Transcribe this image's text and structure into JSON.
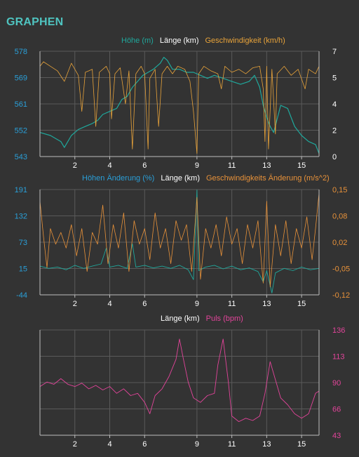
{
  "app": {
    "title": "GRAPHEN"
  },
  "colors": {
    "background": "#333333",
    "axis": "#bdbdbd",
    "grid": "#5a5a5a",
    "teal": "#1fa89c",
    "orange": "#e8a33a",
    "orange2": "#e8923a",
    "pink": "#e2449a",
    "white": "#ffffff",
    "blueLabel": "#2a9fd8",
    "title": "#4fc4c0"
  },
  "chart_data": [
    {
      "type": "line",
      "legend": [
        "Höhe (m)",
        "Länge (km)",
        "Geschwindigkeit (km/h)"
      ],
      "xticks": [
        "2",
        "4",
        "6",
        "9",
        "11",
        "13",
        "15"
      ],
      "xlim": [
        0,
        16
      ],
      "y_left": {
        "ticks": [
          "578",
          "569",
          "561",
          "552",
          "543"
        ],
        "ylim": [
          543,
          578
        ]
      },
      "y_right": {
        "ticks": [
          "7",
          "5",
          "4",
          "2",
          "0"
        ],
        "ylim": [
          0,
          7
        ]
      },
      "series": [
        {
          "name": "Höhe (m)",
          "axis": "left",
          "color": "#1fa89c",
          "width": 1.2,
          "points": [
            [
              0,
              551
            ],
            [
              0.6,
              550
            ],
            [
              1.2,
              548
            ],
            [
              1.4,
              546
            ],
            [
              1.8,
              550
            ],
            [
              2.2,
              552
            ],
            [
              2.6,
              553
            ],
            [
              3.0,
              554
            ],
            [
              3.3,
              555
            ],
            [
              3.6,
              557
            ],
            [
              4.0,
              558
            ],
            [
              4.4,
              559
            ],
            [
              4.7,
              562
            ],
            [
              5.0,
              563
            ],
            [
              5.3,
              566
            ],
            [
              5.6,
              568
            ],
            [
              5.9,
              570
            ],
            [
              6.2,
              571
            ],
            [
              6.5,
              572
            ],
            [
              6.9,
              574
            ],
            [
              7.1,
              576
            ],
            [
              7.3,
              575
            ],
            [
              7.6,
              572
            ],
            [
              8.0,
              572
            ],
            [
              8.4,
              571
            ],
            [
              8.8,
              571
            ],
            [
              9.2,
              570
            ],
            [
              9.6,
              569
            ],
            [
              10.0,
              570
            ],
            [
              10.5,
              569
            ],
            [
              11.0,
              568
            ],
            [
              11.5,
              567
            ],
            [
              12.0,
              568
            ],
            [
              12.3,
              570
            ],
            [
              12.6,
              566
            ],
            [
              12.8,
              560
            ],
            [
              13.0,
              556
            ],
            [
              13.2,
              553
            ],
            [
              13.4,
              551
            ],
            [
              13.8,
              560
            ],
            [
              14.2,
              559
            ],
            [
              14.6,
              553
            ],
            [
              15.0,
              550
            ],
            [
              15.4,
              548
            ],
            [
              15.8,
              547
            ],
            [
              16.0,
              544
            ]
          ]
        },
        {
          "name": "Geschwindigkeit (km/h)",
          "axis": "right",
          "color": "#e8a33a",
          "width": 0.8,
          "points": [
            [
              0,
              6
            ],
            [
              0.2,
              6.3
            ],
            [
              0.6,
              6
            ],
            [
              1.0,
              5.7
            ],
            [
              1.4,
              5
            ],
            [
              1.8,
              6.2
            ],
            [
              2.2,
              5.4
            ],
            [
              2.4,
              3
            ],
            [
              2.6,
              5.6
            ],
            [
              3.0,
              5.8
            ],
            [
              3.2,
              2
            ],
            [
              3.4,
              5.6
            ],
            [
              3.8,
              6
            ],
            [
              4.0,
              5.5
            ],
            [
              4.1,
              2.5
            ],
            [
              4.3,
              5.5
            ],
            [
              4.6,
              5.9
            ],
            [
              4.9,
              3.5
            ],
            [
              5.1,
              5.7
            ],
            [
              5.3,
              0.5
            ],
            [
              5.5,
              5.5
            ],
            [
              5.8,
              6
            ],
            [
              6.0,
              5.5
            ],
            [
              6.2,
              0.5
            ],
            [
              6.3,
              5.2
            ],
            [
              6.6,
              5.8
            ],
            [
              6.8,
              2
            ],
            [
              7.0,
              5.5
            ],
            [
              7.3,
              6
            ],
            [
              7.6,
              5.5
            ],
            [
              7.9,
              6
            ],
            [
              8.3,
              5.8
            ],
            [
              8.6,
              5
            ],
            [
              8.8,
              3
            ],
            [
              9.0,
              0.2
            ],
            [
              9.1,
              5.5
            ],
            [
              9.4,
              6
            ],
            [
              9.8,
              5.7
            ],
            [
              10.2,
              5.5
            ],
            [
              10.4,
              4.5
            ],
            [
              10.6,
              6
            ],
            [
              11.0,
              5.6
            ],
            [
              11.4,
              5.8
            ],
            [
              11.8,
              5.5
            ],
            [
              12.2,
              5.9
            ],
            [
              12.6,
              6
            ],
            [
              12.8,
              4.5
            ],
            [
              12.9,
              1
            ],
            [
              13.0,
              6
            ],
            [
              13.1,
              0.5
            ],
            [
              13.3,
              5.8
            ],
            [
              13.5,
              1.5
            ],
            [
              13.6,
              5.5
            ],
            [
              14.0,
              6
            ],
            [
              14.4,
              5.4
            ],
            [
              14.8,
              5.8
            ],
            [
              15.2,
              4.5
            ],
            [
              15.4,
              5.8
            ],
            [
              15.8,
              5.5
            ],
            [
              16.0,
              6
            ]
          ]
        }
      ]
    },
    {
      "type": "line",
      "legend": [
        "Höhen Änderung (%)",
        "Länge (km)",
        "Geschwindigkeits Änderung (m/s^2)"
      ],
      "xticks": [
        "2",
        "4",
        "6",
        "9",
        "11",
        "13",
        "15"
      ],
      "xlim": [
        0,
        16
      ],
      "y_left": {
        "ticks": [
          "191",
          "132",
          "73",
          "15",
          "-44"
        ],
        "ylim": [
          -44,
          191
        ]
      },
      "y_right": {
        "ticks": [
          "0,15",
          "0,08",
          "0,02",
          "-0,05",
          "-0,12"
        ],
        "ylim": [
          -0.12,
          0.15
        ]
      },
      "series": [
        {
          "name": "Höhen Änderung (%)",
          "axis": "left",
          "color": "#1fa89c",
          "width": 0.9,
          "points": [
            [
              0,
              20
            ],
            [
              0.5,
              15
            ],
            [
              1.0,
              18
            ],
            [
              1.5,
              12
            ],
            [
              2.0,
              22
            ],
            [
              2.5,
              15
            ],
            [
              3.0,
              20
            ],
            [
              3.5,
              25
            ],
            [
              3.8,
              60
            ],
            [
              4.0,
              18
            ],
            [
              4.5,
              22
            ],
            [
              5.0,
              15
            ],
            [
              5.3,
              70
            ],
            [
              5.5,
              18
            ],
            [
              6.0,
              22
            ],
            [
              6.5,
              16
            ],
            [
              7.0,
              20
            ],
            [
              7.5,
              15
            ],
            [
              8.0,
              22
            ],
            [
              8.5,
              12
            ],
            [
              8.8,
              -10
            ],
            [
              9.0,
              190
            ],
            [
              9.1,
              10
            ],
            [
              9.5,
              18
            ],
            [
              10.0,
              22
            ],
            [
              10.5,
              14
            ],
            [
              11.0,
              20
            ],
            [
              11.5,
              12
            ],
            [
              12.0,
              16
            ],
            [
              12.5,
              8
            ],
            [
              12.8,
              -15
            ],
            [
              13.0,
              10
            ],
            [
              13.3,
              -40
            ],
            [
              13.5,
              5
            ],
            [
              14.0,
              15
            ],
            [
              14.5,
              10
            ],
            [
              15.0,
              18
            ],
            [
              15.5,
              12
            ],
            [
              16.0,
              15
            ]
          ]
        },
        {
          "name": "Geschwindigkeits Änderung (m/s^2)",
          "axis": "right",
          "color": "#e8923a",
          "width": 0.8,
          "points": [
            [
              0,
              0.12
            ],
            [
              0.2,
              0.03
            ],
            [
              0.4,
              -0.05
            ],
            [
              0.6,
              0.05
            ],
            [
              0.9,
              0.01
            ],
            [
              1.2,
              0.04
            ],
            [
              1.5,
              0.0
            ],
            [
              1.8,
              0.06
            ],
            [
              2.1,
              -0.02
            ],
            [
              2.4,
              0.05
            ],
            [
              2.7,
              -0.06
            ],
            [
              3.0,
              0.04
            ],
            [
              3.3,
              0.01
            ],
            [
              3.6,
              0.11
            ],
            [
              3.9,
              -0.04
            ],
            [
              4.2,
              0.06
            ],
            [
              4.5,
              0.0
            ],
            [
              4.8,
              0.09
            ],
            [
              5.1,
              -0.06
            ],
            [
              5.4,
              0.07
            ],
            [
              5.7,
              0.01
            ],
            [
              6.0,
              0.05
            ],
            [
              6.3,
              -0.03
            ],
            [
              6.6,
              0.09
            ],
            [
              6.9,
              0.0
            ],
            [
              7.2,
              0.05
            ],
            [
              7.5,
              -0.04
            ],
            [
              7.8,
              0.07
            ],
            [
              8.1,
              0.02
            ],
            [
              8.4,
              0.06
            ],
            [
              8.7,
              -0.06
            ],
            [
              9.0,
              0.13
            ],
            [
              9.2,
              -0.08
            ],
            [
              9.5,
              0.05
            ],
            [
              9.8,
              0.0
            ],
            [
              10.1,
              0.06
            ],
            [
              10.4,
              -0.02
            ],
            [
              10.7,
              0.08
            ],
            [
              11.0,
              0.01
            ],
            [
              11.3,
              0.05
            ],
            [
              11.6,
              -0.04
            ],
            [
              11.9,
              0.06
            ],
            [
              12.2,
              0.0
            ],
            [
              12.5,
              0.07
            ],
            [
              12.8,
              -0.09
            ],
            [
              13.0,
              0.12
            ],
            [
              13.2,
              -0.1
            ],
            [
              13.5,
              0.06
            ],
            [
              13.8,
              -0.02
            ],
            [
              14.1,
              0.07
            ],
            [
              14.4,
              -0.04
            ],
            [
              14.7,
              0.05
            ],
            [
              15.0,
              0.0
            ],
            [
              15.3,
              0.08
            ],
            [
              15.6,
              -0.03
            ],
            [
              15.8,
              0.05
            ],
            [
              16.0,
              0.14
            ]
          ]
        }
      ]
    },
    {
      "type": "line",
      "legend": [
        "Länge (km)",
        "Puls (bpm)"
      ],
      "xticks": [
        "2",
        "4",
        "6",
        "9",
        "11",
        "13",
        "15"
      ],
      "xlim": [
        0,
        16
      ],
      "y_right": {
        "ticks": [
          "136",
          "113",
          "90",
          "66",
          "43"
        ],
        "ylim": [
          43,
          136
        ]
      },
      "series": [
        {
          "name": "Puls (bpm)",
          "axis": "right",
          "color": "#e2449a",
          "width": 0.9,
          "points": [
            [
              0,
              86
            ],
            [
              0.4,
              90
            ],
            [
              0.8,
              88
            ],
            [
              1.2,
              93
            ],
            [
              1.6,
              88
            ],
            [
              2.0,
              86
            ],
            [
              2.4,
              89
            ],
            [
              2.8,
              84
            ],
            [
              3.2,
              87
            ],
            [
              3.6,
              83
            ],
            [
              4.0,
              86
            ],
            [
              4.4,
              80
            ],
            [
              4.8,
              84
            ],
            [
              5.2,
              78
            ],
            [
              5.6,
              80
            ],
            [
              6.0,
              72
            ],
            [
              6.3,
              62
            ],
            [
              6.6,
              78
            ],
            [
              7.0,
              84
            ],
            [
              7.4,
              95
            ],
            [
              7.8,
              110
            ],
            [
              8.0,
              128
            ],
            [
              8.2,
              112
            ],
            [
              8.5,
              90
            ],
            [
              8.8,
              76
            ],
            [
              9.2,
              72
            ],
            [
              9.6,
              78
            ],
            [
              10.0,
              80
            ],
            [
              10.2,
              105
            ],
            [
              10.5,
              128
            ],
            [
              10.8,
              90
            ],
            [
              11.0,
              60
            ],
            [
              11.4,
              55
            ],
            [
              11.8,
              58
            ],
            [
              12.2,
              56
            ],
            [
              12.6,
              60
            ],
            [
              12.9,
              80
            ],
            [
              13.2,
              108
            ],
            [
              13.5,
              92
            ],
            [
              13.8,
              76
            ],
            [
              14.2,
              70
            ],
            [
              14.6,
              62
            ],
            [
              15.0,
              58
            ],
            [
              15.4,
              62
            ],
            [
              15.8,
              80
            ],
            [
              16.0,
              82
            ]
          ]
        }
      ]
    }
  ]
}
